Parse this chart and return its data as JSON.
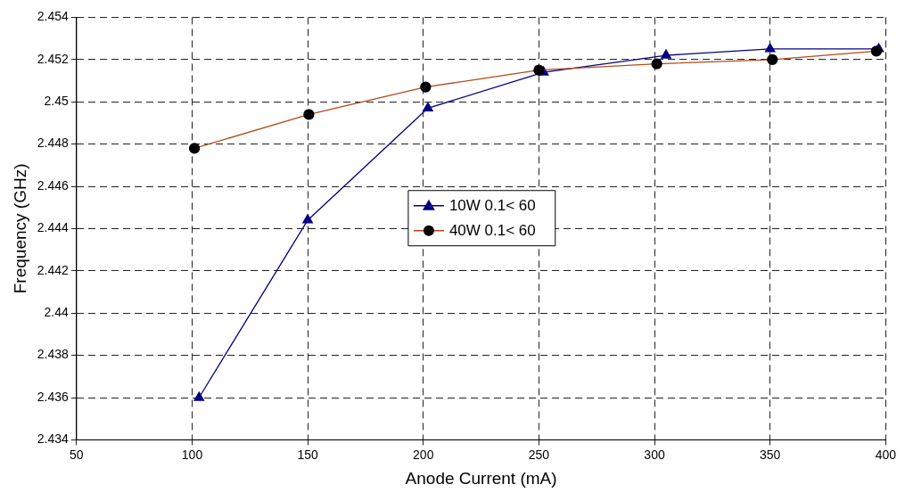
{
  "chart_data": {
    "type": "line",
    "xlabel": "Anode Current (mA)",
    "ylabel": "Frequency (GHz)",
    "xlim": [
      50,
      400
    ],
    "xticks": [
      50,
      100,
      150,
      200,
      250,
      300,
      350,
      400
    ],
    "ylim": [
      2.434,
      2.454
    ],
    "yticks": [
      2.434,
      2.436,
      2.438,
      2.44,
      2.442,
      2.444,
      2.446,
      2.448,
      2.45,
      2.452,
      2.454
    ],
    "grid": true,
    "legend": "center",
    "line_style": "solid",
    "series": [
      {
        "name": "10W 0.1< 60",
        "color": "#000080",
        "marker": "triangle",
        "x": [
          103,
          150,
          202,
          252,
          305,
          350,
          397
        ],
        "values": [
          2.436,
          2.4444,
          2.4497,
          2.4514,
          2.4522,
          2.4525,
          2.4525
        ]
      },
      {
        "name": "40W 0.1< 60",
        "color": "#b34a1a",
        "marker": "circle",
        "x": [
          101,
          150.5,
          201,
          250,
          301,
          351,
          396
        ],
        "values": [
          2.4478,
          2.4494,
          2.4507,
          2.4515,
          2.4518,
          2.452,
          2.4524
        ]
      }
    ]
  }
}
